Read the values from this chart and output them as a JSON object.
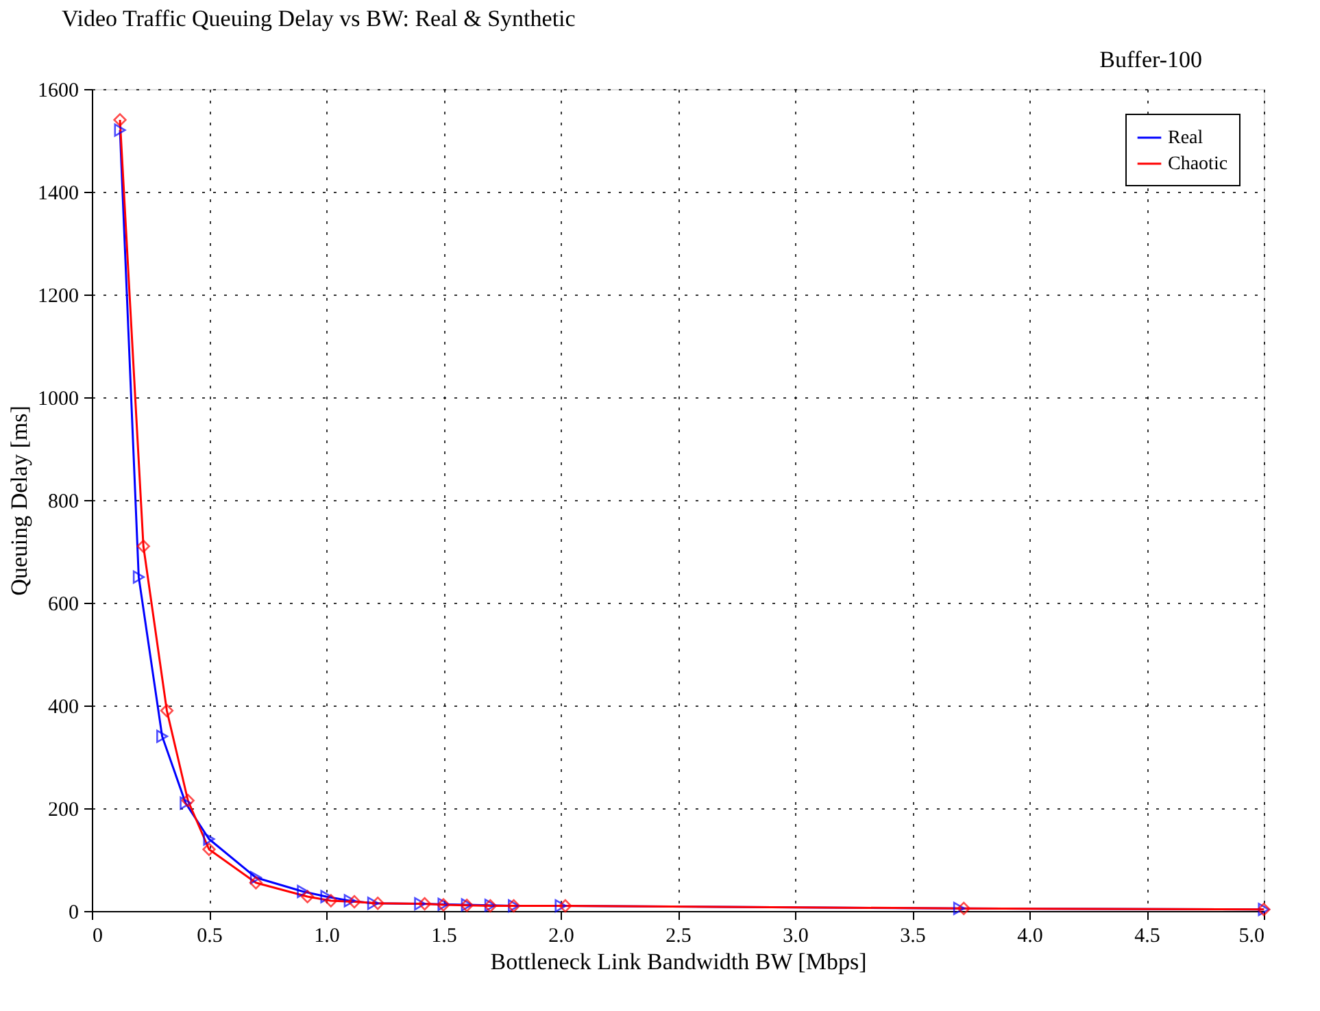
{
  "chart_data": {
    "type": "line",
    "title": "Video Traffic Queuing Delay vs BW: Real & Synthetic",
    "annotations": [
      "Buffer-100"
    ],
    "xlabel": "Bottleneck Link Bandwidth BW [Mbps]",
    "ylabel": "Queuing Delay [ms]",
    "xlim": [
      0,
      5
    ],
    "xticks": [
      0,
      0.5,
      {
        "value": 1,
        "label": "1.0"
      },
      1.5,
      {
        "value": 2,
        "label": "2.0"
      },
      2.5,
      {
        "value": 3,
        "label": "3.0"
      },
      3.5,
      {
        "value": 4,
        "label": "4.0"
      },
      4.5,
      {
        "value": 5,
        "label": "5.0"
      }
    ],
    "ylim": [
      0,
      1600
    ],
    "yticks": [
      0,
      200,
      400,
      600,
      800,
      1000,
      1200,
      1400,
      1600
    ],
    "grid": true,
    "legend": "top right",
    "line_style": "solid",
    "series": [
      {
        "name": "Real",
        "color": "#0000ff",
        "marker": "triangle",
        "x": [
          0.12,
          0.2,
          0.3,
          0.4,
          0.5,
          0.7,
          0.9,
          1.0,
          1.1,
          1.2,
          1.4,
          1.5,
          1.6,
          1.7,
          1.8,
          2.0,
          3.7,
          5.0
        ],
        "values": [
          1520,
          650,
          340,
          210,
          140,
          65,
          38,
          28,
          20,
          15,
          14,
          13,
          12,
          11,
          10,
          10,
          5,
          3
        ]
      },
      {
        "name": "Chaotic",
        "color": "#ff0000",
        "marker": "diamond",
        "x": [
          0.12,
          0.22,
          0.32,
          0.41,
          0.5,
          0.7,
          0.92,
          1.02,
          1.12,
          1.22,
          1.42,
          1.5,
          1.6,
          1.7,
          1.8,
          2.02,
          3.72,
          5.0
        ],
        "values": [
          1540,
          710,
          390,
          215,
          120,
          55,
          28,
          20,
          18,
          15,
          14,
          12,
          11,
          10,
          10,
          10,
          5,
          3
        ]
      }
    ]
  }
}
